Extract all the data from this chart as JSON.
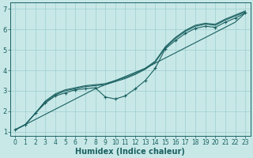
{
  "xlabel": "Humidex (Indice chaleur)",
  "bg_color": "#c8e8e8",
  "line_color": "#1a6060",
  "xlim": [
    -0.5,
    23.5
  ],
  "ylim": [
    0.8,
    7.3
  ],
  "xticks": [
    0,
    1,
    2,
    3,
    4,
    5,
    6,
    7,
    8,
    9,
    10,
    11,
    12,
    13,
    14,
    15,
    16,
    17,
    18,
    19,
    20,
    21,
    22,
    23
  ],
  "yticks": [
    1,
    2,
    3,
    4,
    5,
    6,
    7
  ],
  "grid_color": "#9ecece",
  "straight_line_x": [
    0,
    1,
    2,
    3,
    4,
    5,
    6,
    7,
    8,
    9,
    10,
    11,
    12,
    13,
    14,
    15,
    16,
    17,
    18,
    19,
    20,
    21,
    22,
    23
  ],
  "straight_line_y": [
    1.1,
    1.35,
    1.6,
    1.85,
    2.1,
    2.35,
    2.6,
    2.85,
    3.1,
    3.3,
    3.5,
    3.7,
    3.9,
    4.1,
    4.35,
    4.6,
    4.85,
    5.1,
    5.35,
    5.6,
    5.85,
    6.1,
    6.35,
    6.8
  ],
  "curve_marker_x": [
    0,
    1,
    2,
    3,
    4,
    5,
    6,
    7,
    8,
    9,
    10,
    11,
    12,
    13,
    14,
    15,
    16,
    17,
    18,
    19,
    20,
    21,
    22,
    23
  ],
  "curve_marker_y": [
    1.1,
    1.35,
    1.9,
    2.4,
    2.75,
    2.9,
    3.05,
    3.1,
    3.15,
    2.7,
    2.6,
    2.75,
    3.1,
    3.5,
    4.1,
    5.05,
    5.45,
    5.8,
    6.05,
    6.15,
    6.1,
    6.35,
    6.55,
    6.8
  ],
  "upper1_x": [
    0,
    1,
    2,
    3,
    4,
    5,
    6,
    7,
    8,
    9,
    10,
    11,
    12,
    13,
    14,
    15,
    16,
    17,
    18,
    19,
    20,
    21,
    22,
    23
  ],
  "upper1_y": [
    1.1,
    1.35,
    1.9,
    2.45,
    2.8,
    3.0,
    3.1,
    3.2,
    3.25,
    3.3,
    3.45,
    3.6,
    3.8,
    4.05,
    4.4,
    5.1,
    5.55,
    5.9,
    6.15,
    6.25,
    6.2,
    6.45,
    6.65,
    6.85
  ],
  "upper2_x": [
    0,
    1,
    2,
    3,
    4,
    5,
    6,
    7,
    8,
    9,
    10,
    11,
    12,
    13,
    14,
    15,
    16,
    17,
    18,
    19,
    20,
    21,
    22,
    23
  ],
  "upper2_y": [
    1.1,
    1.35,
    1.9,
    2.5,
    2.85,
    3.05,
    3.15,
    3.25,
    3.3,
    3.35,
    3.5,
    3.65,
    3.85,
    4.1,
    4.45,
    5.15,
    5.6,
    5.95,
    6.2,
    6.3,
    6.25,
    6.5,
    6.7,
    6.9
  ],
  "font_size": 7
}
